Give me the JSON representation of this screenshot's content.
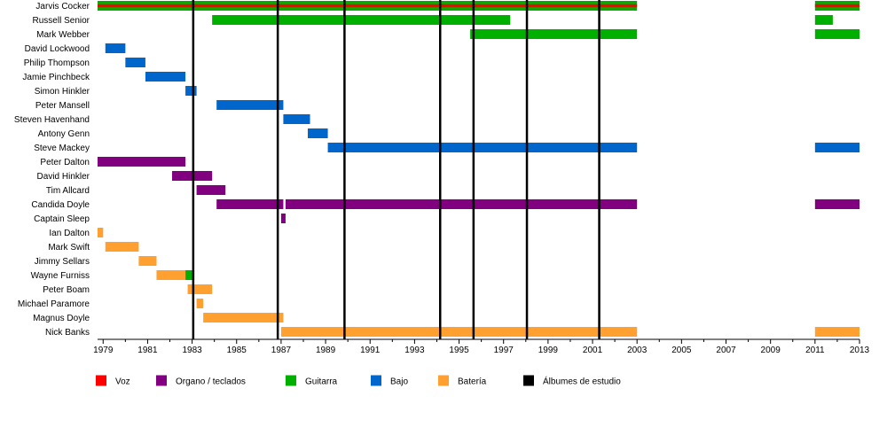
{
  "chart_data": {
    "type": "timeline",
    "members": [
      "Jarvis Cocker",
      "Russell Senior",
      "Mark Webber",
      "David Lockwood",
      "Philip Thompson",
      "Jamie Pinchbeck",
      "Simon Hinkler",
      "Peter Mansell",
      "Steven Havenhand",
      "Antony Genn",
      "Steve Mackey",
      "Peter Dalton",
      "David Hinkler",
      "Tim Allcard",
      "Candida Doyle",
      "Captain Sleep",
      "Ian Dalton",
      "Mark Swift",
      "Jimmy Sellars",
      "Wayne Furniss",
      "Peter Boam",
      "Michael Paramore",
      "Magnus Doyle",
      "Nick Banks"
    ],
    "xlim": [
      1978.75,
      2013.0
    ],
    "x_ticks": [
      1979,
      1981,
      1983,
      1985,
      1987,
      1989,
      1991,
      1993,
      1995,
      1997,
      1999,
      2001,
      2003,
      2005,
      2007,
      2009,
      2011,
      2013
    ],
    "roles": [
      {
        "key": "voz",
        "name": "Voz",
        "color": "#ff0000"
      },
      {
        "key": "organo",
        "name": "Organo / teclados",
        "color": "#800080"
      },
      {
        "key": "guitarra",
        "name": "Guitarra",
        "color": "#00b000"
      },
      {
        "key": "bajo",
        "name": "Bajo",
        "color": "#0066cc"
      },
      {
        "key": "bateria",
        "name": "Batería",
        "color": "#ffa030"
      },
      {
        "key": "albumes",
        "name": "Álbumes de estudio",
        "color": "#000000"
      }
    ],
    "albums": [
      1983.05,
      1986.85,
      1989.85,
      1994.15,
      1995.65,
      1998.05,
      2001.3
    ],
    "bars": [
      {
        "member": "Jarvis Cocker",
        "role": "guitarra",
        "start": 1978.75,
        "end": 2003.0
      },
      {
        "member": "Jarvis Cocker",
        "role": "guitarra",
        "start": 2011.0,
        "end": 2013.0
      },
      {
        "member": "Russell Senior",
        "role": "guitarra",
        "start": 1983.9,
        "end": 1997.3
      },
      {
        "member": "Russell Senior",
        "role": "guitarra",
        "start": 2011.0,
        "end": 2011.8
      },
      {
        "member": "Mark Webber",
        "role": "guitarra",
        "start": 1995.5,
        "end": 2003.0
      },
      {
        "member": "Mark Webber",
        "role": "guitarra",
        "start": 2011.0,
        "end": 2013.0
      },
      {
        "member": "David Lockwood",
        "role": "bajo",
        "start": 1979.1,
        "end": 1980.0
      },
      {
        "member": "Philip Thompson",
        "role": "bajo",
        "start": 1980.0,
        "end": 1980.9
      },
      {
        "member": "Jamie Pinchbeck",
        "role": "bajo",
        "start": 1980.9,
        "end": 1982.7
      },
      {
        "member": "Simon Hinkler",
        "role": "bajo",
        "start": 1982.7,
        "end": 1983.2
      },
      {
        "member": "Peter Mansell",
        "role": "bajo",
        "start": 1984.1,
        "end": 1987.1
      },
      {
        "member": "Steven Havenhand",
        "role": "bajo",
        "start": 1987.1,
        "end": 1988.3
      },
      {
        "member": "Antony Genn",
        "role": "bajo",
        "start": 1988.2,
        "end": 1989.1
      },
      {
        "member": "Steve Mackey",
        "role": "bajo",
        "start": 1989.1,
        "end": 2003.0
      },
      {
        "member": "Steve Mackey",
        "role": "bajo",
        "start": 2011.0,
        "end": 2013.0
      },
      {
        "member": "Peter Dalton",
        "role": "organo",
        "start": 1978.75,
        "end": 1982.7
      },
      {
        "member": "David Hinkler",
        "role": "organo",
        "start": 1982.1,
        "end": 1983.9
      },
      {
        "member": "Tim Allcard",
        "role": "organo",
        "start": 1983.2,
        "end": 1984.5
      },
      {
        "member": "Candida Doyle",
        "role": "organo",
        "start": 1984.1,
        "end": 1987.1
      },
      {
        "member": "Candida Doyle",
        "role": "organo",
        "start": 1987.2,
        "end": 2003.0
      },
      {
        "member": "Candida Doyle",
        "role": "organo",
        "start": 2011.0,
        "end": 2013.0
      },
      {
        "member": "Captain Sleep",
        "role": "organo",
        "start": 1987.0,
        "end": 1987.2
      },
      {
        "member": "Ian Dalton",
        "role": "bateria",
        "start": 1978.75,
        "end": 1979.0
      },
      {
        "member": "Mark Swift",
        "role": "bateria",
        "start": 1979.1,
        "end": 1980.6
      },
      {
        "member": "Jimmy Sellars",
        "role": "bateria",
        "start": 1980.6,
        "end": 1981.4
      },
      {
        "member": "Wayne Furniss",
        "role": "bateria",
        "start": 1981.4,
        "end": 1982.7
      },
      {
        "member": "Wayne Furniss",
        "role": "guitarra",
        "start": 1982.7,
        "end": 1983.1
      },
      {
        "member": "Peter Boam",
        "role": "bateria",
        "start": 1982.8,
        "end": 1983.9
      },
      {
        "member": "Michael Paramore",
        "role": "bateria",
        "start": 1983.2,
        "end": 1983.5
      },
      {
        "member": "Magnus Doyle",
        "role": "bateria",
        "start": 1983.5,
        "end": 1987.1
      },
      {
        "member": "Nick Banks",
        "role": "bateria",
        "start": 1987.0,
        "end": 2003.0
      },
      {
        "member": "Nick Banks",
        "role": "bateria",
        "start": 2011.0,
        "end": 2013.0
      }
    ],
    "voice_stripe": [
      {
        "member": "Jarvis Cocker",
        "start": 1978.75,
        "end": 2003.0
      },
      {
        "member": "Jarvis Cocker",
        "start": 2011.0,
        "end": 2013.0
      }
    ]
  }
}
